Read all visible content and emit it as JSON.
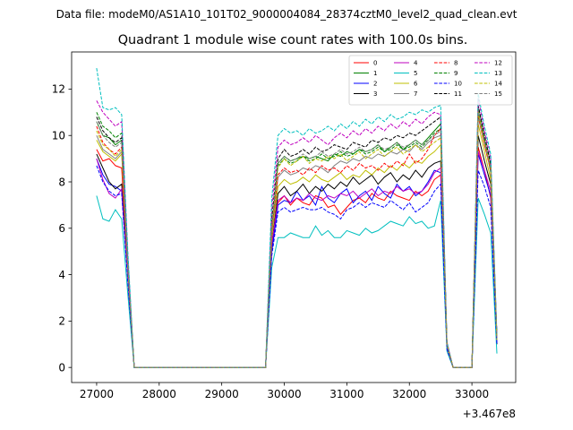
{
  "figure": {
    "suptitle": "Data file: modeM0/AS1A10_101T02_9000004084_28374cztM0_level2_quad_clean.evt",
    "offset_text": "+3.467e8"
  },
  "chart_data": {
    "type": "line",
    "title": "Quadrant 1 module wise count rates with 100.0s bins.",
    "xlabel": "",
    "ylabel": "",
    "x_offset": 346700000,
    "xlim": [
      26600,
      33700
    ],
    "ylim": [
      -0.65,
      13.6
    ],
    "xticks": [
      27000,
      28000,
      29000,
      30000,
      31000,
      32000,
      33000
    ],
    "xtick_labels": [
      "27000",
      "28000",
      "29000",
      "30000",
      "31000",
      "32000",
      "33000"
    ],
    "yticks": [
      0,
      2,
      4,
      6,
      8,
      10,
      12
    ],
    "ytick_labels": [
      "0",
      "2",
      "4",
      "6",
      "8",
      "10",
      "12"
    ],
    "grid": false,
    "legend_position": "top-right",
    "legend_columns": 4,
    "x": [
      27000,
      27100,
      27200,
      27300,
      27400,
      27500,
      27600,
      27700,
      27800,
      27900,
      28000,
      28100,
      28200,
      28300,
      28400,
      28500,
      28600,
      28700,
      28800,
      28900,
      29000,
      29100,
      29200,
      29300,
      29400,
      29500,
      29600,
      29700,
      29800,
      29900,
      30000,
      30100,
      30200,
      30300,
      30400,
      30500,
      30600,
      30700,
      30800,
      30900,
      31000,
      31100,
      31200,
      31300,
      31400,
      31500,
      31600,
      31700,
      31800,
      31900,
      32000,
      32100,
      32200,
      32300,
      32400,
      32500,
      32600,
      32700,
      32800,
      32900,
      33000,
      33100,
      33200,
      33300,
      33400
    ],
    "series": [
      {
        "name": "0",
        "color": "#ff0000",
        "dash": "solid",
        "values": [
          9.4,
          8.9,
          9.0,
          8.7,
          8.6,
          4.0,
          0,
          0,
          0,
          0,
          0,
          0,
          0,
          0,
          0,
          0,
          0,
          0,
          0,
          0,
          0,
          0,
          0,
          0,
          0,
          0,
          0,
          0,
          5.0,
          7.1,
          7.4,
          7.0,
          7.3,
          7.1,
          7.0,
          7.4,
          7.3,
          6.9,
          7.0,
          6.6,
          6.9,
          7.2,
          7.3,
          7.1,
          7.5,
          7.3,
          7.2,
          7.6,
          7.4,
          7.3,
          7.2,
          7.6,
          7.4,
          7.6,
          8.1,
          8.3,
          0.9,
          0,
          0,
          0,
          0,
          9.5,
          8.5,
          7.3,
          1.2
        ]
      },
      {
        "name": "1",
        "color": "#008000",
        "dash": "solid",
        "values": [
          10.6,
          10.0,
          9.9,
          9.6,
          9.8,
          4.3,
          0,
          0,
          0,
          0,
          0,
          0,
          0,
          0,
          0,
          0,
          0,
          0,
          0,
          0,
          0,
          0,
          0,
          0,
          0,
          0,
          0,
          0,
          6.0,
          8.8,
          9.1,
          8.9,
          9.0,
          9.1,
          9.0,
          9.1,
          9.0,
          8.9,
          9.2,
          9.1,
          9.3,
          9.2,
          9.4,
          9.3,
          9.4,
          9.6,
          9.3,
          9.5,
          9.7,
          9.4,
          9.6,
          9.8,
          9.6,
          9.9,
          10.2,
          10.5,
          1.0,
          0,
          0,
          0,
          0,
          11.0,
          9.8,
          8.4,
          1.3
        ]
      },
      {
        "name": "2",
        "color": "#0000ff",
        "dash": "solid",
        "values": [
          9.0,
          8.3,
          7.9,
          7.8,
          7.6,
          3.8,
          0,
          0,
          0,
          0,
          0,
          0,
          0,
          0,
          0,
          0,
          0,
          0,
          0,
          0,
          0,
          0,
          0,
          0,
          0,
          0,
          0,
          0,
          5.0,
          7.0,
          7.2,
          7.1,
          7.6,
          7.2,
          7.4,
          7.0,
          7.8,
          7.3,
          7.1,
          7.5,
          7.7,
          7.1,
          7.4,
          7.6,
          7.2,
          7.8,
          7.5,
          7.3,
          7.9,
          7.6,
          7.8,
          7.4,
          7.6,
          8.0,
          8.5,
          8.4,
          0.9,
          0,
          0,
          0,
          0,
          9.2,
          8.3,
          7.4,
          1.1
        ]
      },
      {
        "name": "3",
        "color": "#000000",
        "dash": "solid",
        "values": [
          9.2,
          8.6,
          8.0,
          7.7,
          7.9,
          3.9,
          0,
          0,
          0,
          0,
          0,
          0,
          0,
          0,
          0,
          0,
          0,
          0,
          0,
          0,
          0,
          0,
          0,
          0,
          0,
          0,
          0,
          0,
          5.3,
          7.5,
          7.8,
          7.4,
          7.6,
          7.9,
          7.5,
          7.8,
          7.6,
          7.9,
          7.7,
          8.0,
          7.8,
          8.2,
          7.9,
          8.1,
          8.3,
          7.9,
          8.2,
          8.4,
          8.0,
          8.3,
          8.1,
          8.5,
          8.2,
          8.6,
          8.8,
          8.9,
          0.9,
          0,
          0,
          0,
          0,
          10.0,
          8.9,
          7.9,
          1.0
        ]
      },
      {
        "name": "4",
        "color": "#bf00bf",
        "dash": "solid",
        "values": [
          9.0,
          8.1,
          7.5,
          7.3,
          7.7,
          3.7,
          0,
          0,
          0,
          0,
          0,
          0,
          0,
          0,
          0,
          0,
          0,
          0,
          0,
          0,
          0,
          0,
          0,
          0,
          0,
          0,
          0,
          0,
          5.3,
          7.2,
          7.4,
          7.1,
          7.3,
          7.2,
          7.5,
          7.3,
          7.2,
          7.4,
          7.3,
          7.5,
          7.4,
          7.6,
          7.3,
          7.5,
          7.7,
          7.4,
          7.6,
          7.5,
          7.8,
          7.6,
          7.7,
          7.5,
          7.6,
          7.9,
          8.4,
          8.6,
          0.9,
          0,
          0,
          0,
          0,
          9.3,
          8.5,
          7.6,
          1.1
        ]
      },
      {
        "name": "5",
        "color": "#00bfbf",
        "dash": "solid",
        "values": [
          7.4,
          6.4,
          6.3,
          6.8,
          6.4,
          3.1,
          0,
          0,
          0,
          0,
          0,
          0,
          0,
          0,
          0,
          0,
          0,
          0,
          0,
          0,
          0,
          0,
          0,
          0,
          0,
          0,
          0,
          0,
          4.3,
          5.6,
          5.6,
          5.8,
          5.7,
          5.6,
          5.6,
          6.1,
          5.7,
          5.9,
          5.6,
          5.6,
          5.9,
          5.8,
          5.7,
          6.0,
          5.8,
          5.9,
          6.1,
          6.3,
          6.2,
          6.1,
          6.5,
          6.2,
          6.3,
          6.0,
          6.1,
          7.2,
          0.7,
          0,
          0,
          0,
          0,
          7.3,
          6.6,
          5.8,
          0.6
        ]
      },
      {
        "name": "6",
        "color": "#bfbf00",
        "dash": "solid",
        "values": [
          9.8,
          9.3,
          9.1,
          8.9,
          9.2,
          4.1,
          0,
          0,
          0,
          0,
          0,
          0,
          0,
          0,
          0,
          0,
          0,
          0,
          0,
          0,
          0,
          0,
          0,
          0,
          0,
          0,
          0,
          0,
          5.6,
          7.8,
          8.1,
          7.9,
          8.0,
          8.2,
          8.0,
          8.3,
          8.1,
          8.0,
          8.2,
          8.4,
          8.1,
          8.3,
          8.2,
          8.5,
          8.3,
          8.6,
          8.4,
          8.7,
          8.5,
          8.8,
          8.6,
          8.9,
          8.8,
          9.1,
          9.3,
          9.6,
          1.0,
          0,
          0,
          0,
          0,
          10.5,
          9.3,
          8.1,
          1.2
        ]
      },
      {
        "name": "7",
        "color": "#808080",
        "dash": "solid",
        "values": [
          10.0,
          9.4,
          9.2,
          9.0,
          9.3,
          4.2,
          0,
          0,
          0,
          0,
          0,
          0,
          0,
          0,
          0,
          0,
          0,
          0,
          0,
          0,
          0,
          0,
          0,
          0,
          0,
          0,
          0,
          0,
          5.8,
          8.2,
          8.5,
          8.3,
          8.4,
          8.6,
          8.5,
          8.7,
          8.6,
          8.4,
          8.7,
          8.9,
          8.8,
          9.0,
          8.9,
          9.1,
          9.0,
          9.2,
          9.1,
          9.3,
          9.2,
          9.4,
          9.3,
          9.6,
          9.4,
          9.7,
          9.9,
          10.0,
          1.0,
          0,
          0,
          0,
          0,
          10.8,
          9.6,
          8.5,
          1.2
        ]
      },
      {
        "name": "8",
        "color": "#ff0000",
        "dash": "dashed",
        "values": [
          10.4,
          9.7,
          9.4,
          9.2,
          9.5,
          4.3,
          0,
          0,
          0,
          0,
          0,
          0,
          0,
          0,
          0,
          0,
          0,
          0,
          0,
          0,
          0,
          0,
          0,
          0,
          0,
          0,
          0,
          0,
          5.9,
          8.3,
          8.6,
          8.4,
          8.5,
          8.3,
          8.6,
          8.4,
          8.7,
          8.5,
          8.6,
          8.4,
          8.7,
          8.5,
          8.8,
          8.6,
          8.7,
          8.5,
          8.8,
          8.6,
          8.9,
          8.7,
          9.2,
          8.8,
          9.0,
          9.4,
          10.0,
          10.3,
          1.0,
          0,
          0,
          0,
          0,
          10.9,
          9.6,
          8.5,
          1.3
        ]
      },
      {
        "name": "9",
        "color": "#008000",
        "dash": "dashed",
        "values": [
          11.0,
          10.4,
          10.2,
          9.9,
          10.1,
          4.5,
          0,
          0,
          0,
          0,
          0,
          0,
          0,
          0,
          0,
          0,
          0,
          0,
          0,
          0,
          0,
          0,
          0,
          0,
          0,
          0,
          0,
          0,
          6.2,
          8.7,
          9.0,
          8.8,
          8.9,
          9.1,
          8.9,
          9.0,
          9.2,
          9.0,
          9.1,
          9.3,
          9.1,
          9.2,
          9.4,
          9.2,
          9.3,
          9.5,
          9.3,
          9.4,
          9.6,
          9.4,
          9.5,
          9.7,
          9.5,
          9.8,
          10.1,
          10.3,
          1.0,
          0,
          0,
          0,
          0,
          11.2,
          9.9,
          8.7,
          1.3
        ]
      },
      {
        "name": "10",
        "color": "#0000ff",
        "dash": "dashed",
        "values": [
          8.7,
          8.0,
          7.6,
          7.4,
          7.5,
          3.6,
          0,
          0,
          0,
          0,
          0,
          0,
          0,
          0,
          0,
          0,
          0,
          0,
          0,
          0,
          0,
          0,
          0,
          0,
          0,
          0,
          0,
          0,
          4.8,
          6.7,
          6.9,
          6.7,
          6.8,
          6.9,
          6.8,
          6.8,
          6.9,
          6.7,
          6.6,
          6.4,
          6.8,
          6.9,
          7.1,
          6.9,
          7.1,
          7.0,
          6.9,
          7.2,
          7.0,
          6.8,
          7.1,
          6.7,
          6.9,
          7.1,
          7.6,
          7.9,
          0.8,
          0,
          0,
          0,
          0,
          8.5,
          7.8,
          6.9,
          1.0
        ]
      },
      {
        "name": "11",
        "color": "#000000",
        "dash": "dashed",
        "values": [
          10.8,
          10.2,
          9.9,
          9.7,
          9.9,
          4.4,
          0,
          0,
          0,
          0,
          0,
          0,
          0,
          0,
          0,
          0,
          0,
          0,
          0,
          0,
          0,
          0,
          0,
          0,
          0,
          0,
          0,
          0,
          6.4,
          9.0,
          9.4,
          9.1,
          9.2,
          9.4,
          9.2,
          9.5,
          9.3,
          9.4,
          9.6,
          9.5,
          9.4,
          9.7,
          9.6,
          9.5,
          9.8,
          9.7,
          9.9,
          9.8,
          10.0,
          9.9,
          10.1,
          10.0,
          10.2,
          10.4,
          10.6,
          10.8,
          1.0,
          0,
          0,
          0,
          0,
          11.3,
          10.0,
          8.8,
          1.3
        ]
      },
      {
        "name": "12",
        "color": "#bf00bf",
        "dash": "dashed",
        "values": [
          11.5,
          11.0,
          10.7,
          10.4,
          10.6,
          4.7,
          0,
          0,
          0,
          0,
          0,
          0,
          0,
          0,
          0,
          0,
          0,
          0,
          0,
          0,
          0,
          0,
          0,
          0,
          0,
          0,
          0,
          0,
          6.8,
          9.5,
          9.8,
          9.6,
          9.7,
          9.9,
          9.7,
          10.0,
          9.8,
          9.6,
          9.9,
          10.1,
          9.9,
          10.2,
          10.0,
          10.3,
          10.1,
          10.4,
          10.2,
          10.5,
          10.3,
          10.6,
          10.4,
          10.7,
          10.5,
          10.8,
          11.0,
          10.9,
          1.1,
          0,
          0,
          0,
          0,
          11.6,
          10.2,
          9.0,
          1.4
        ]
      },
      {
        "name": "13",
        "color": "#00bfbf",
        "dash": "dashed",
        "values": [
          12.9,
          11.2,
          11.1,
          11.2,
          10.9,
          4.9,
          0,
          0,
          0,
          0,
          0,
          0,
          0,
          0,
          0,
          0,
          0,
          0,
          0,
          0,
          0,
          0,
          0,
          0,
          0,
          0,
          0,
          0,
          7.3,
          10.0,
          10.3,
          10.1,
          10.2,
          10.0,
          10.3,
          10.1,
          10.2,
          10.4,
          10.2,
          10.5,
          10.3,
          10.6,
          10.4,
          10.7,
          10.5,
          10.8,
          10.6,
          10.9,
          10.7,
          10.8,
          11.0,
          10.9,
          11.1,
          11.0,
          11.2,
          11.3,
          1.1,
          0,
          0,
          0,
          0,
          11.8,
          10.4,
          9.2,
          1.4
        ]
      },
      {
        "name": "14",
        "color": "#bfbf00",
        "dash": "dashed",
        "values": [
          10.2,
          9.6,
          9.4,
          9.1,
          9.4,
          4.2,
          0,
          0,
          0,
          0,
          0,
          0,
          0,
          0,
          0,
          0,
          0,
          0,
          0,
          0,
          0,
          0,
          0,
          0,
          0,
          0,
          0,
          0,
          6.0,
          8.6,
          9.0,
          8.7,
          8.9,
          9.1,
          8.8,
          9.0,
          8.9,
          9.1,
          9.0,
          9.2,
          8.9,
          9.1,
          9.3,
          9.0,
          9.2,
          9.4,
          9.1,
          9.3,
          9.5,
          9.2,
          9.4,
          9.6,
          9.3,
          9.5,
          9.7,
          9.9,
          1.0,
          0,
          0,
          0,
          0,
          11.0,
          9.7,
          8.6,
          1.2
        ]
      },
      {
        "name": "15",
        "color": "#808080",
        "dash": "dashed",
        "values": [
          10.6,
          10.0,
          9.7,
          9.5,
          9.7,
          4.3,
          0,
          0,
          0,
          0,
          0,
          0,
          0,
          0,
          0,
          0,
          0,
          0,
          0,
          0,
          0,
          0,
          0,
          0,
          0,
          0,
          0,
          0,
          6.1,
          8.8,
          9.1,
          8.9,
          9.0,
          9.2,
          9.0,
          9.1,
          9.3,
          9.1,
          9.2,
          9.4,
          9.2,
          9.3,
          9.5,
          9.3,
          9.4,
          9.6,
          9.4,
          9.5,
          9.7,
          9.5,
          9.6,
          9.8,
          9.6,
          9.8,
          10.0,
          10.2,
          1.0,
          0,
          0,
          0,
          0,
          11.1,
          9.8,
          8.6,
          1.3
        ]
      }
    ]
  }
}
